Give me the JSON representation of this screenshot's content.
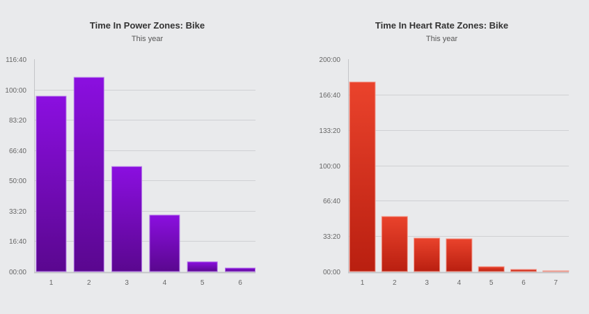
{
  "chart_data": [
    {
      "type": "bar",
      "title": "Time In Power Zones: Bike",
      "subtitle": "This year",
      "xlabel": "",
      "ylabel": "",
      "units": "minutes (displayed as mm:ss style hours:minutes)",
      "categories": [
        "1",
        "2",
        "3",
        "4",
        "5",
        "6"
      ],
      "values": [
        5780,
        6400,
        3460,
        1860,
        320,
        115
      ],
      "ylim": [
        0,
        7000
      ],
      "yticks": [
        0,
        1000,
        2000,
        3000,
        4000,
        5000,
        6000,
        7000
      ],
      "ytick_labels": [
        "00:00",
        "16:40",
        "33:20",
        "50:00",
        "66:40",
        "83:20",
        "100:00",
        "116:40"
      ],
      "grid": true,
      "colors": {
        "top": "#8b0fe0",
        "bottom": "#5a078f",
        "edge": "#b57ae8"
      }
    },
    {
      "type": "bar",
      "title": "Time In Heart Rate Zones: Bike",
      "subtitle": "This year",
      "xlabel": "",
      "ylabel": "",
      "units": "minutes (displayed as mm:ss style hours:minutes)",
      "categories": [
        "1",
        "2",
        "3",
        "4",
        "5",
        "6",
        "7"
      ],
      "values": [
        10710,
        3110,
        1890,
        1850,
        275,
        118,
        30
      ],
      "ylim": [
        0,
        12000
      ],
      "yticks": [
        0,
        2000,
        4000,
        6000,
        8000,
        10000,
        12000
      ],
      "ytick_labels": [
        "00:00",
        "33:20",
        "66:40",
        "100:00",
        "133:20",
        "166:40",
        "200:00"
      ],
      "grid": true,
      "colors": {
        "top": "#ea432c",
        "bottom": "#b91f10",
        "edge": "#f29b8e"
      }
    }
  ]
}
